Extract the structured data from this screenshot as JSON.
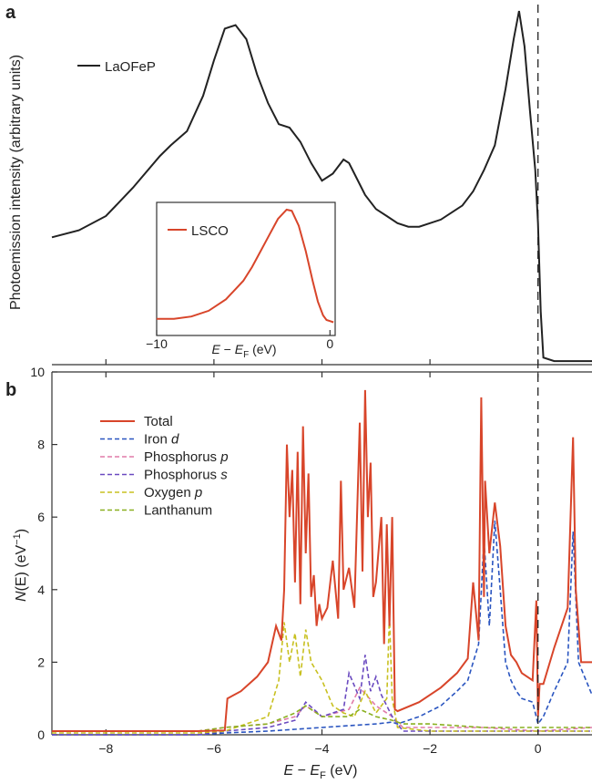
{
  "chart_data": [
    {
      "panel": "a",
      "type": "line",
      "ylabel": "Photoemission intensity (arbitrary units)",
      "xlim": [
        -9,
        1
      ],
      "series": [
        {
          "name": "LaOFeP",
          "color": "#222222",
          "x": [
            -9,
            -8.5,
            -8,
            -7.5,
            -7,
            -6.8,
            -6.5,
            -6.2,
            -6.0,
            -5.8,
            -5.6,
            -5.4,
            -5.2,
            -5.0,
            -4.8,
            -4.6,
            -4.4,
            -4.2,
            -4.0,
            -3.8,
            -3.6,
            -3.5,
            -3.4,
            -3.2,
            -3.0,
            -2.8,
            -2.6,
            -2.4,
            -2.2,
            -2.0,
            -1.8,
            -1.6,
            -1.4,
            -1.2,
            -1.0,
            -0.8,
            -0.6,
            -0.45,
            -0.35,
            -0.25,
            -0.15,
            -0.05,
            0.0,
            0.05,
            0.1,
            0.3,
            0.6,
            1.0
          ],
          "y": [
            0.36,
            0.38,
            0.42,
            0.5,
            0.59,
            0.62,
            0.66,
            0.76,
            0.86,
            0.95,
            0.96,
            0.92,
            0.82,
            0.74,
            0.68,
            0.67,
            0.63,
            0.57,
            0.52,
            0.54,
            0.58,
            0.57,
            0.54,
            0.48,
            0.44,
            0.42,
            0.4,
            0.39,
            0.39,
            0.4,
            0.41,
            0.43,
            0.45,
            0.49,
            0.55,
            0.62,
            0.78,
            0.92,
            1.0,
            0.9,
            0.72,
            0.55,
            0.4,
            0.15,
            0.02,
            0.01,
            0.01,
            0.01
          ]
        }
      ],
      "inset": {
        "type": "line",
        "xlabel": "E − E_F (eV)",
        "xlim": [
          -10,
          0.3
        ],
        "xticks": [
          -10,
          0
        ],
        "series": [
          {
            "name": "LSCO",
            "color": "#d8452a",
            "x": [
              -10,
              -9,
              -8,
              -7,
              -6,
              -5,
              -4.5,
              -4,
              -3.5,
              -3,
              -2.5,
              -2.2,
              -1.8,
              -1.4,
              -1.0,
              -0.7,
              -0.4,
              -0.2,
              0.0,
              0.2
            ],
            "y": [
              0.05,
              0.05,
              0.07,
              0.12,
              0.22,
              0.38,
              0.5,
              0.64,
              0.78,
              0.92,
              1.0,
              0.99,
              0.86,
              0.64,
              0.38,
              0.2,
              0.08,
              0.04,
              0.03,
              0.02
            ]
          }
        ]
      }
    },
    {
      "panel": "b",
      "type": "line",
      "xlabel": "E − E_F (eV)",
      "ylabel": "N(E) (eV⁻¹)",
      "xlim": [
        -9,
        1
      ],
      "ylim": [
        0,
        10
      ],
      "xticks": [
        -8,
        -6,
        -4,
        -2,
        0
      ],
      "yticks": [
        0,
        2,
        4,
        6,
        8,
        10
      ],
      "series": [
        {
          "name": "Total",
          "color": "#d8452a",
          "style": "solid",
          "x": [
            -9,
            -6.3,
            -5.8,
            -5.75,
            -5.5,
            -5.2,
            -5.0,
            -4.85,
            -4.75,
            -4.7,
            -4.65,
            -4.6,
            -4.55,
            -4.5,
            -4.45,
            -4.4,
            -4.35,
            -4.3,
            -4.25,
            -4.2,
            -4.15,
            -4.1,
            -4.05,
            -4.0,
            -3.9,
            -3.8,
            -3.7,
            -3.65,
            -3.6,
            -3.5,
            -3.4,
            -3.3,
            -3.25,
            -3.2,
            -3.15,
            -3.1,
            -3.05,
            -3.0,
            -2.9,
            -2.85,
            -2.8,
            -2.75,
            -2.7,
            -2.65,
            -2.6,
            -2.2,
            -1.8,
            -1.5,
            -1.3,
            -1.2,
            -1.1,
            -1.05,
            -1.0,
            -0.98,
            -0.9,
            -0.8,
            -0.7,
            -0.6,
            -0.5,
            -0.4,
            -0.3,
            -0.1,
            -0.03,
            0.0,
            0.03,
            0.1,
            0.3,
            0.55,
            0.65,
            0.7,
            0.8,
            1.0
          ],
          "y": [
            0.1,
            0.1,
            0.12,
            1.0,
            1.2,
            1.6,
            2.0,
            3.0,
            2.6,
            4.0,
            8.0,
            6.0,
            7.3,
            4.2,
            7.8,
            3.6,
            8.5,
            5.0,
            7.2,
            3.8,
            4.4,
            3.0,
            3.6,
            3.2,
            3.5,
            4.8,
            3.2,
            7.0,
            4.0,
            4.6,
            3.5,
            8.6,
            4.5,
            9.5,
            6.0,
            7.5,
            3.8,
            4.2,
            6.0,
            2.5,
            5.8,
            3.0,
            6.0,
            0.7,
            0.65,
            0.9,
            1.3,
            1.7,
            2.1,
            4.2,
            2.6,
            9.3,
            3.8,
            7.0,
            5.0,
            6.4,
            5.2,
            3.0,
            2.2,
            2.0,
            1.7,
            1.5,
            3.7,
            0.5,
            1.4,
            1.4,
            2.4,
            3.5,
            8.2,
            4.0,
            2.0,
            2.0
          ]
        },
        {
          "name": "Iron d",
          "color": "#2a55c0",
          "style": "dashed",
          "x": [
            -9,
            -6.3,
            -5.8,
            -5.0,
            -4.5,
            -4.0,
            -3.5,
            -3.0,
            -2.7,
            -2.6,
            -2.2,
            -1.8,
            -1.5,
            -1.3,
            -1.1,
            -1.0,
            -0.9,
            -0.8,
            -0.7,
            -0.6,
            -0.5,
            -0.4,
            -0.3,
            -0.1,
            0.0,
            0.1,
            0.3,
            0.55,
            0.65,
            0.75,
            1.0
          ],
          "y": [
            0.0,
            0.0,
            0.05,
            0.1,
            0.15,
            0.2,
            0.25,
            0.3,
            0.35,
            0.3,
            0.5,
            0.8,
            1.2,
            1.5,
            2.5,
            5.4,
            3.0,
            5.9,
            4.0,
            2.0,
            1.5,
            1.2,
            1.0,
            0.9,
            0.3,
            0.5,
            1.2,
            2.0,
            5.6,
            2.0,
            1.1
          ]
        },
        {
          "name": "Phosphorus p",
          "color": "#e07aa8",
          "style": "dashed",
          "x": [
            -9,
            -6.3,
            -5.8,
            -5.0,
            -4.5,
            -4.3,
            -4.0,
            -3.5,
            -3.3,
            -3.0,
            -2.7,
            -2.5,
            -2.0,
            -1.0,
            0.0,
            1.0
          ],
          "y": [
            0.1,
            0.1,
            0.2,
            0.3,
            0.5,
            0.8,
            0.5,
            0.7,
            1.3,
            0.8,
            0.5,
            0.2,
            0.2,
            0.2,
            0.1,
            0.2
          ]
        },
        {
          "name": "Phosphorus s",
          "color": "#6a4ac0",
          "style": "dashed",
          "x": [
            -9,
            -6.3,
            -5.8,
            -5.0,
            -4.5,
            -4.3,
            -4.0,
            -3.6,
            -3.5,
            -3.3,
            -3.2,
            -3.1,
            -3.0,
            -2.9,
            -2.7,
            -2.5,
            -1.0,
            1.0
          ],
          "y": [
            0.0,
            0.0,
            0.1,
            0.2,
            0.4,
            0.9,
            0.5,
            0.7,
            1.7,
            1.0,
            2.2,
            1.2,
            1.6,
            1.1,
            0.5,
            0.1,
            0.1,
            0.1
          ]
        },
        {
          "name": "Oxygen p",
          "color": "#c8c020",
          "style": "dashed",
          "x": [
            -9,
            -6.3,
            -5.8,
            -5.0,
            -4.8,
            -4.7,
            -4.6,
            -4.5,
            -4.4,
            -4.3,
            -4.2,
            -4.0,
            -3.8,
            -3.6,
            -3.4,
            -3.2,
            -3.0,
            -2.8,
            -2.75,
            -2.7,
            -2.6,
            -2.0,
            -1.0,
            1.0
          ],
          "y": [
            0.05,
            0.05,
            0.1,
            0.5,
            1.5,
            3.1,
            2.0,
            2.8,
            1.6,
            2.9,
            2.0,
            1.5,
            0.8,
            0.6,
            0.5,
            1.2,
            0.6,
            1.0,
            3.3,
            1.0,
            0.2,
            0.1,
            0.1,
            0.1
          ]
        },
        {
          "name": "Lanthanum",
          "color": "#8ab020",
          "style": "dashed",
          "x": [
            -9,
            -6.3,
            -5.8,
            -5.0,
            -4.5,
            -4.3,
            -4.0,
            -3.5,
            -3.3,
            -3.0,
            -2.7,
            -2.5,
            -2.0,
            -1.0,
            0.0,
            1.0
          ],
          "y": [
            0.1,
            0.1,
            0.2,
            0.3,
            0.6,
            0.8,
            0.5,
            0.5,
            0.7,
            0.5,
            0.4,
            0.3,
            0.3,
            0.2,
            0.2,
            0.2
          ]
        }
      ],
      "legend_position": "top-left"
    }
  ]
}
